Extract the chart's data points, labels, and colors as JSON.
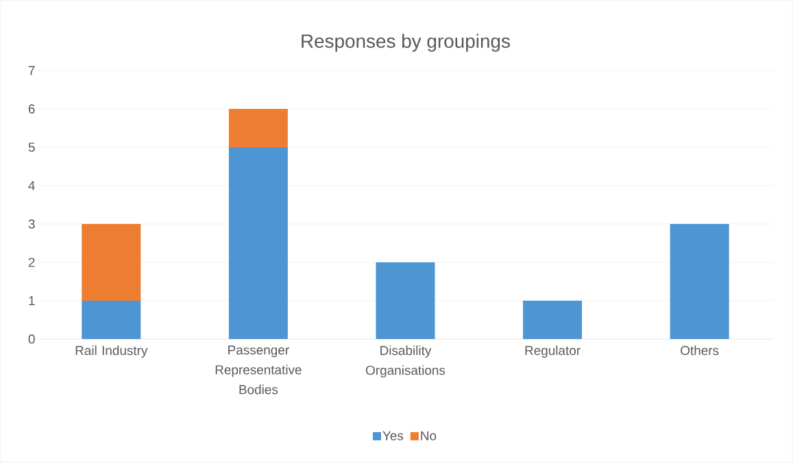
{
  "chart_data": {
    "type": "bar",
    "title": "Responses by groupings",
    "stacked": true,
    "categories": [
      "Rail Industry",
      "Passenger Representative Bodies",
      "Disability Organisations",
      "Regulator",
      "Others"
    ],
    "series": [
      {
        "name": "Yes",
        "color": "#4e95d3",
        "values": [
          1,
          5,
          2,
          1,
          3
        ]
      },
      {
        "name": "No",
        "color": "#ed7d31",
        "values": [
          2,
          1,
          null,
          null,
          null
        ]
      }
    ],
    "ylim": [
      0,
      7
    ],
    "yticks": [
      0,
      1,
      2,
      3,
      4,
      5,
      6,
      7
    ],
    "grid": "y",
    "legend": "bottom"
  }
}
